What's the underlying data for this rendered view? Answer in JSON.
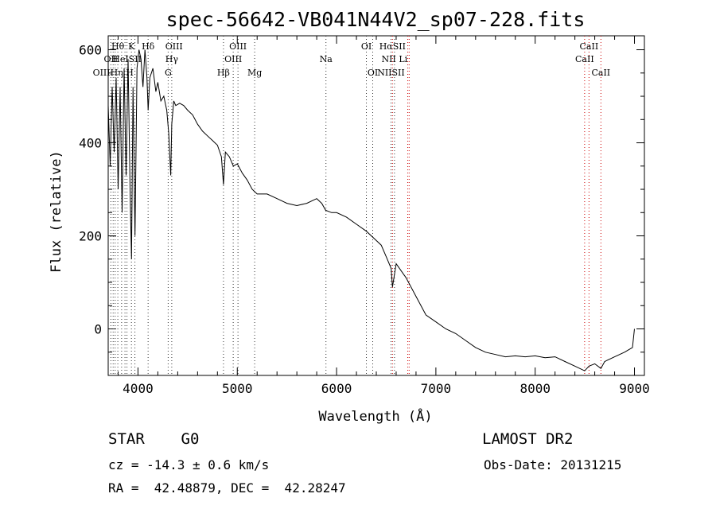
{
  "chart_data": {
    "type": "line",
    "title": "spec-56642-VB041N44V2_sp07-228.fits",
    "xlabel": "Wavelength (Å)",
    "ylabel": "Flux (relative)",
    "xlim": [
      3700,
      9100
    ],
    "ylim": [
      -100,
      630
    ],
    "xticks": [
      4000,
      5000,
      6000,
      7000,
      8000,
      9000
    ],
    "yticks": [
      0,
      200,
      400,
      600
    ],
    "x_minor_step": 200,
    "y_minor_step": 50,
    "grid": false,
    "series": [
      {
        "x": [
          3700,
          3720,
          3740,
          3760,
          3780,
          3800,
          3820,
          3840,
          3860,
          3880,
          3900,
          3920,
          3935,
          3950,
          3970,
          3990,
          4010,
          4030,
          4050,
          4070,
          4090,
          4102,
          4120,
          4150,
          4180,
          4200,
          4230,
          4260,
          4290,
          4310,
          4330,
          4340,
          4360,
          4380,
          4420,
          4460,
          4500,
          4550,
          4600,
          4650,
          4700,
          4750,
          4800,
          4840,
          4861,
          4880,
          4920,
          4960,
          5000,
          5050,
          5100,
          5150,
          5200,
          5300,
          5400,
          5500,
          5600,
          5700,
          5800,
          5850,
          5890,
          5950,
          6000,
          6100,
          6200,
          6300,
          6400,
          6450,
          6500,
          6550,
          6563,
          6600,
          6700,
          6800,
          6900,
          7000,
          7100,
          7200,
          7300,
          7400,
          7500,
          7600,
          7700,
          7800,
          7900,
          8000,
          8100,
          8200,
          8300,
          8400,
          8498,
          8542,
          8600,
          8662,
          8700,
          8800,
          8900,
          8980,
          9000
        ],
        "y": [
          480,
          350,
          520,
          380,
          540,
          300,
          520,
          250,
          560,
          330,
          580,
          300,
          150,
          520,
          200,
          560,
          600,
          580,
          520,
          600,
          540,
          470,
          540,
          560,
          510,
          530,
          490,
          500,
          470,
          420,
          330,
          440,
          490,
          480,
          485,
          480,
          470,
          460,
          440,
          425,
          415,
          405,
          395,
          370,
          310,
          380,
          370,
          350,
          355,
          335,
          320,
          300,
          290,
          290,
          280,
          270,
          265,
          270,
          280,
          270,
          255,
          250,
          250,
          240,
          225,
          210,
          190,
          180,
          155,
          130,
          90,
          140,
          110,
          70,
          30,
          15,
          0,
          -10,
          -25,
          -40,
          -50,
          -55,
          -60,
          -58,
          -60,
          -58,
          -62,
          -60,
          -70,
          -80,
          -90,
          -80,
          -75,
          -85,
          -70,
          -60,
          -50,
          -40,
          0
        ]
      }
    ],
    "lines_row1": [
      {
        "label": "Hθ",
        "x": 3797
      },
      {
        "label": "K",
        "x": 3934
      },
      {
        "label": "Hδ",
        "x": 4102
      },
      {
        "label": "OIII",
        "x": 4363
      },
      {
        "label": "OIII",
        "x": 5007
      },
      {
        "label": "OI",
        "x": 6300
      },
      {
        "label": "HαSII",
        "x": 6563
      },
      {
        "label": "CaII",
        "x": 8542
      }
    ],
    "lines_row2": [
      {
        "label": "OII",
        "x": 3727
      },
      {
        "label": "HeISII",
        "x": 3889
      },
      {
        "label": "Hγ",
        "x": 4340
      },
      {
        "label": "OIII",
        "x": 4959
      },
      {
        "label": "Na",
        "x": 5893
      },
      {
        "label": "NII Li",
        "x": 6583
      },
      {
        "label": "CaII",
        "x": 8498
      }
    ],
    "lines_row3": [
      {
        "label": "OIIIHη H",
        "x": 3750
      },
      {
        "label": "G",
        "x": 4304
      },
      {
        "label": "Hβ",
        "x": 4861
      },
      {
        "label": "Mg",
        "x": 5175
      },
      {
        "label": "OI",
        "x": 6364
      },
      {
        "label": "NIISII",
        "x": 6548
      },
      {
        "label": "CaII",
        "x": 8662
      }
    ],
    "black_dotted_x": [
      3727,
      3750,
      3770,
      3797,
      3835,
      3869,
      3889,
      3934,
      3969,
      4102,
      4304,
      4340,
      4861,
      4959,
      5007,
      5175,
      5893,
      6300,
      6364,
      6548,
      6583
    ],
    "red_dotted_x": [
      6563,
      6717,
      6731,
      8498,
      8542,
      8662
    ]
  },
  "footer": {
    "object_type": "STAR    G0",
    "survey": "LAMOST DR2",
    "cz": "cz = -14.3 ± 0.6 km/s",
    "obs_date": "Obs-Date: 20131215",
    "coords": "RA =  42.48879, DEC =  42.28247"
  }
}
